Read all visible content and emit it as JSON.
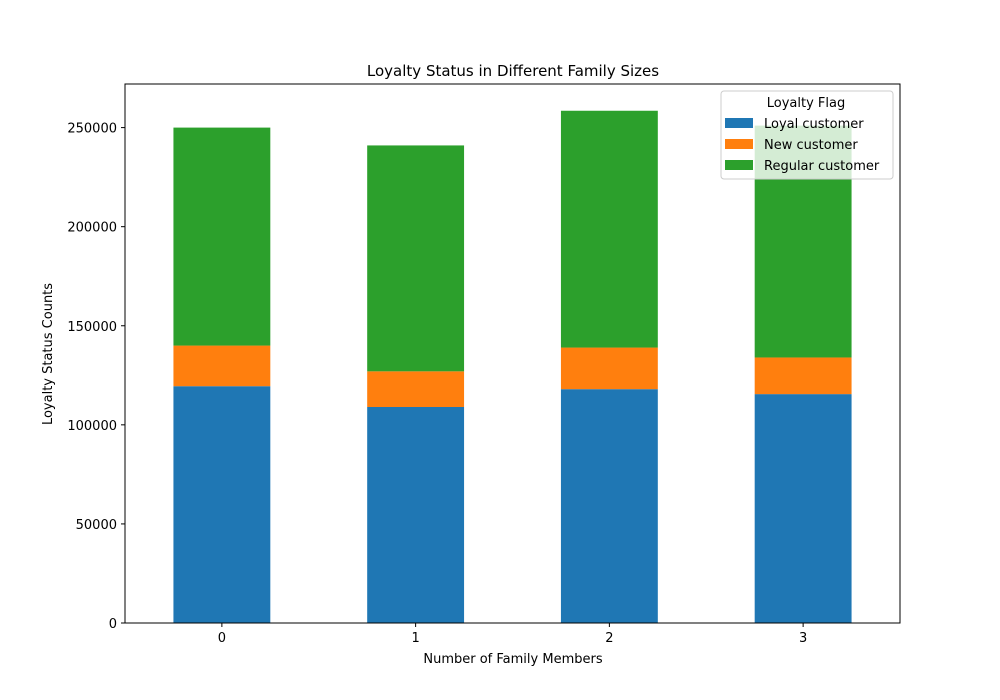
{
  "chart_data": {
    "type": "bar",
    "stacked": true,
    "title": "Loyalty Status in Different Family Sizes",
    "xlabel": "Number of Family Members",
    "ylabel": "Loyalty Status Counts",
    "categories": [
      "0",
      "1",
      "2",
      "3"
    ],
    "ylim": [
      0,
      272000
    ],
    "yticks": [
      0,
      50000,
      100000,
      150000,
      200000,
      250000
    ],
    "legend_title": "Loyalty Flag",
    "legend_position": "top-right",
    "grid": false,
    "series": [
      {
        "name": "Loyal customer",
        "color": "#1f77b4",
        "values": [
          119500,
          109000,
          118000,
          115500
        ]
      },
      {
        "name": "New customer",
        "color": "#ff7f0e",
        "values": [
          20500,
          18000,
          21000,
          18500
        ]
      },
      {
        "name": "Regular customer",
        "color": "#2ca02c",
        "values": [
          110000,
          114000,
          119500,
          117000
        ]
      }
    ]
  }
}
